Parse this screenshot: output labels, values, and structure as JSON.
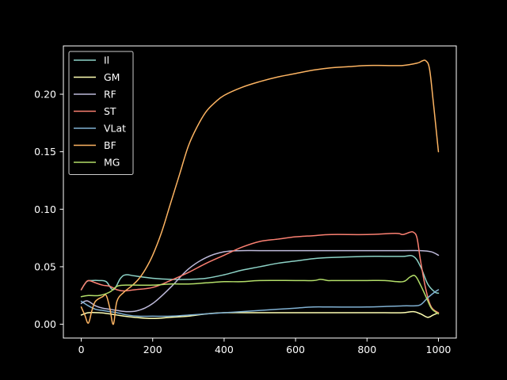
{
  "chart_data": {
    "type": "line",
    "title": "",
    "xlabel": "",
    "ylabel": "",
    "xlim": [
      -50,
      1050
    ],
    "ylim": [
      -0.012,
      0.242
    ],
    "xticks": [
      0,
      200,
      400,
      600,
      800,
      1000
    ],
    "yticks": [
      0.0,
      0.05,
      0.1,
      0.15,
      0.2
    ],
    "xtick_labels": [
      "0",
      "200",
      "400",
      "600",
      "800",
      "1000"
    ],
    "ytick_labels": [
      "0.00",
      "0.05",
      "0.10",
      "0.15",
      "0.20"
    ],
    "grid": false,
    "legend_position": "top-left",
    "background": "#000000",
    "foreground": "#ffffff",
    "series": [
      {
        "name": "Il",
        "color": "#8dd3c7",
        "points": [
          [
            0,
            0.03
          ],
          [
            15,
            0.037
          ],
          [
            30,
            0.038
          ],
          [
            50,
            0.038
          ],
          [
            70,
            0.037
          ],
          [
            90,
            0.03
          ],
          [
            110,
            0.04
          ],
          [
            125,
            0.043
          ],
          [
            150,
            0.042
          ],
          [
            200,
            0.04
          ],
          [
            250,
            0.039
          ],
          [
            300,
            0.039
          ],
          [
            350,
            0.04
          ],
          [
            400,
            0.043
          ],
          [
            450,
            0.047
          ],
          [
            500,
            0.05
          ],
          [
            550,
            0.053
          ],
          [
            600,
            0.055
          ],
          [
            650,
            0.057
          ],
          [
            700,
            0.058
          ],
          [
            800,
            0.059
          ],
          [
            850,
            0.059
          ],
          [
            900,
            0.059
          ],
          [
            930,
            0.059
          ],
          [
            950,
            0.05
          ],
          [
            970,
            0.035
          ],
          [
            990,
            0.028
          ],
          [
            1000,
            0.027
          ]
        ]
      },
      {
        "name": "GM",
        "color": "#ffffb3",
        "points": [
          [
            0,
            0.008
          ],
          [
            20,
            0.01
          ],
          [
            50,
            0.01
          ],
          [
            80,
            0.009
          ],
          [
            100,
            0.008
          ],
          [
            150,
            0.006
          ],
          [
            200,
            0.005
          ],
          [
            250,
            0.006
          ],
          [
            300,
            0.007
          ],
          [
            350,
            0.009
          ],
          [
            400,
            0.01
          ],
          [
            500,
            0.01
          ],
          [
            600,
            0.01
          ],
          [
            700,
            0.01
          ],
          [
            800,
            0.01
          ],
          [
            850,
            0.01
          ],
          [
            900,
            0.01
          ],
          [
            930,
            0.011
          ],
          [
            950,
            0.009
          ],
          [
            970,
            0.006
          ],
          [
            985,
            0.008
          ],
          [
            1000,
            0.01
          ]
        ]
      },
      {
        "name": "RF",
        "color": "#bebada",
        "points": [
          [
            0,
            0.018
          ],
          [
            10,
            0.02
          ],
          [
            20,
            0.02
          ],
          [
            40,
            0.016
          ],
          [
            60,
            0.014
          ],
          [
            80,
            0.013
          ],
          [
            100,
            0.012
          ],
          [
            130,
            0.011
          ],
          [
            160,
            0.012
          ],
          [
            200,
            0.018
          ],
          [
            250,
            0.032
          ],
          [
            300,
            0.048
          ],
          [
            350,
            0.058
          ],
          [
            400,
            0.063
          ],
          [
            450,
            0.064
          ],
          [
            500,
            0.064
          ],
          [
            600,
            0.064
          ],
          [
            700,
            0.064
          ],
          [
            800,
            0.064
          ],
          [
            900,
            0.064
          ],
          [
            950,
            0.064
          ],
          [
            980,
            0.063
          ],
          [
            1000,
            0.06
          ]
        ]
      },
      {
        "name": "ST",
        "color": "#fb8072",
        "points": [
          [
            0,
            0.03
          ],
          [
            10,
            0.035
          ],
          [
            20,
            0.038
          ],
          [
            40,
            0.036
          ],
          [
            60,
            0.034
          ],
          [
            80,
            0.033
          ],
          [
            100,
            0.03
          ],
          [
            120,
            0.029
          ],
          [
            150,
            0.03
          ],
          [
            200,
            0.032
          ],
          [
            250,
            0.038
          ],
          [
            300,
            0.045
          ],
          [
            350,
            0.053
          ],
          [
            400,
            0.06
          ],
          [
            450,
            0.067
          ],
          [
            500,
            0.072
          ],
          [
            550,
            0.074
          ],
          [
            600,
            0.076
          ],
          [
            650,
            0.077
          ],
          [
            700,
            0.078
          ],
          [
            800,
            0.078
          ],
          [
            880,
            0.079
          ],
          [
            900,
            0.078
          ],
          [
            920,
            0.08
          ],
          [
            930,
            0.08
          ],
          [
            940,
            0.075
          ],
          [
            950,
            0.055
          ],
          [
            965,
            0.03
          ],
          [
            980,
            0.015
          ],
          [
            1000,
            0.01
          ]
        ]
      },
      {
        "name": "VLat",
        "color": "#80b1d3",
        "points": [
          [
            0,
            0.02
          ],
          [
            20,
            0.016
          ],
          [
            40,
            0.013
          ],
          [
            60,
            0.012
          ],
          [
            80,
            0.011
          ],
          [
            100,
            0.01
          ],
          [
            130,
            0.008
          ],
          [
            160,
            0.007
          ],
          [
            200,
            0.007
          ],
          [
            250,
            0.007
          ],
          [
            300,
            0.008
          ],
          [
            350,
            0.009
          ],
          [
            400,
            0.01
          ],
          [
            450,
            0.011
          ],
          [
            500,
            0.012
          ],
          [
            550,
            0.013
          ],
          [
            600,
            0.014
          ],
          [
            650,
            0.015
          ],
          [
            700,
            0.015
          ],
          [
            800,
            0.015
          ],
          [
            900,
            0.016
          ],
          [
            930,
            0.016
          ],
          [
            950,
            0.017
          ],
          [
            970,
            0.023
          ],
          [
            990,
            0.028
          ],
          [
            1000,
            0.03
          ]
        ]
      },
      {
        "name": "BF",
        "color": "#fdb462",
        "points": [
          [
            0,
            0.015
          ],
          [
            10,
            0.008
          ],
          [
            20,
            0.001
          ],
          [
            30,
            0.012
          ],
          [
            40,
            0.02
          ],
          [
            60,
            0.024
          ],
          [
            70,
            0.025
          ],
          [
            80,
            0.014
          ],
          [
            90,
            0.0
          ],
          [
            100,
            0.02
          ],
          [
            120,
            0.028
          ],
          [
            140,
            0.033
          ],
          [
            160,
            0.039
          ],
          [
            180,
            0.048
          ],
          [
            200,
            0.06
          ],
          [
            225,
            0.08
          ],
          [
            250,
            0.105
          ],
          [
            275,
            0.13
          ],
          [
            300,
            0.155
          ],
          [
            325,
            0.172
          ],
          [
            350,
            0.185
          ],
          [
            375,
            0.193
          ],
          [
            400,
            0.199
          ],
          [
            450,
            0.206
          ],
          [
            500,
            0.211
          ],
          [
            550,
            0.215
          ],
          [
            600,
            0.218
          ],
          [
            650,
            0.221
          ],
          [
            700,
            0.223
          ],
          [
            750,
            0.224
          ],
          [
            800,
            0.225
          ],
          [
            850,
            0.225
          ],
          [
            900,
            0.225
          ],
          [
            940,
            0.227
          ],
          [
            955,
            0.229
          ],
          [
            965,
            0.229
          ],
          [
            975,
            0.222
          ],
          [
            985,
            0.195
          ],
          [
            995,
            0.165
          ],
          [
            1000,
            0.15
          ]
        ]
      },
      {
        "name": "MG",
        "color": "#b3de69",
        "points": [
          [
            0,
            0.024
          ],
          [
            20,
            0.025
          ],
          [
            50,
            0.025
          ],
          [
            80,
            0.028
          ],
          [
            100,
            0.033
          ],
          [
            125,
            0.034
          ],
          [
            150,
            0.034
          ],
          [
            200,
            0.034
          ],
          [
            250,
            0.035
          ],
          [
            300,
            0.035
          ],
          [
            350,
            0.036
          ],
          [
            400,
            0.037
          ],
          [
            450,
            0.037
          ],
          [
            500,
            0.038
          ],
          [
            600,
            0.038
          ],
          [
            650,
            0.038
          ],
          [
            670,
            0.039
          ],
          [
            690,
            0.038
          ],
          [
            700,
            0.038
          ],
          [
            750,
            0.038
          ],
          [
            800,
            0.038
          ],
          [
            850,
            0.038
          ],
          [
            900,
            0.037
          ],
          [
            920,
            0.041
          ],
          [
            935,
            0.042
          ],
          [
            950,
            0.034
          ],
          [
            965,
            0.024
          ],
          [
            980,
            0.014
          ],
          [
            995,
            0.01
          ],
          [
            1000,
            0.009
          ]
        ]
      }
    ]
  }
}
